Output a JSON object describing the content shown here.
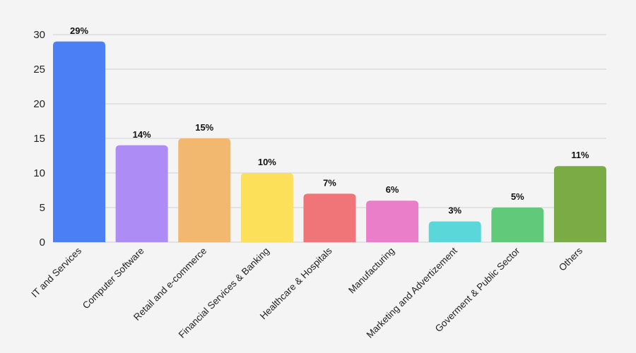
{
  "chart_data": {
    "type": "bar",
    "title": "",
    "xlabel": "",
    "ylabel": "",
    "ylim": [
      0,
      30
    ],
    "yticks": [
      0,
      5,
      10,
      15,
      20,
      25,
      30
    ],
    "grid": true,
    "categories": [
      "IT and Services",
      "Computer Software",
      "Retail and e-commerce",
      "Financial Services & Banking",
      "Healthcare & Hospitals",
      "Manufacturing",
      "Marketing and Advertizement",
      "Goverment & Public Sector",
      "Others"
    ],
    "values": [
      29,
      14,
      15,
      10,
      7,
      6,
      3,
      5,
      11
    ],
    "data_labels": [
      "29%",
      "14%",
      "15%",
      "10%",
      "7%",
      "6%",
      "3%",
      "5%",
      "11%"
    ],
    "colors": [
      "#4a7ff5",
      "#ae8cf5",
      "#f2b870",
      "#fde05a",
      "#f07579",
      "#ea7ec8",
      "#5ad7d8",
      "#61c97a",
      "#7aab44"
    ]
  }
}
